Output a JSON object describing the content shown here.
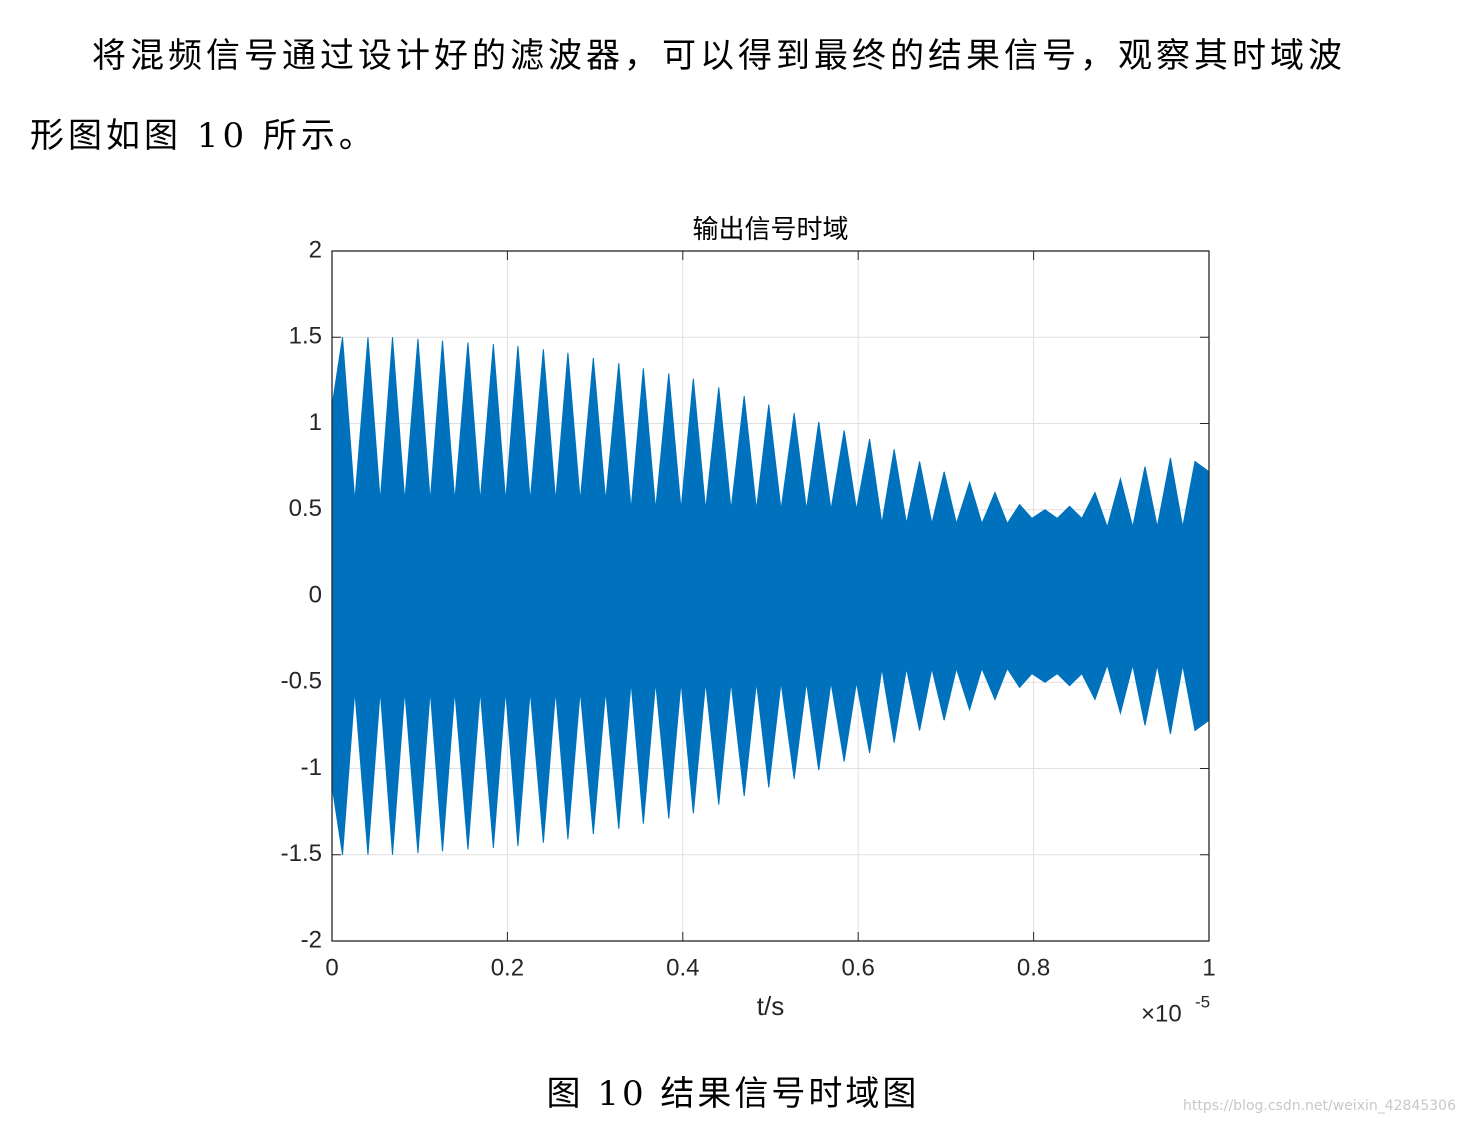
{
  "paragraph_lines": [
    "将混频信号通过设计好的滤波器，可以得到最终的结果信号，观察其时域波",
    "形图如图 10 所示。"
  ],
  "chart_data": {
    "type": "area",
    "title": "输出信号时域",
    "x_label": "t/s",
    "x_multiplier": "×10",
    "x_multiplier_exponent": "-5",
    "x": [
      0,
      0.012,
      0.026,
      0.041,
      0.055,
      0.069,
      0.083,
      0.098,
      0.112,
      0.126,
      0.14,
      0.155,
      0.169,
      0.184,
      0.198,
      0.212,
      0.226,
      0.241,
      0.255,
      0.269,
      0.283,
      0.298,
      0.312,
      0.327,
      0.341,
      0.355,
      0.369,
      0.384,
      0.398,
      0.412,
      0.426,
      0.441,
      0.455,
      0.47,
      0.484,
      0.498,
      0.512,
      0.527,
      0.541,
      0.555,
      0.569,
      0.584,
      0.598,
      0.613,
      0.627,
      0.641,
      0.655,
      0.67,
      0.684,
      0.698,
      0.712,
      0.727,
      0.741,
      0.756,
      0.77,
      0.784,
      0.798,
      0.813,
      0.827,
      0.841,
      0.855,
      0.87,
      0.884,
      0.899,
      0.913,
      0.927,
      0.941,
      0.956,
      0.97,
      0.984,
      1
    ],
    "series": [
      {
        "color": "#0072bd",
        "values": [
          1.1,
          1.5,
          0.55,
          1.5,
          0.55,
          1.5,
          0.55,
          1.49,
          0.55,
          1.48,
          0.55,
          1.47,
          0.55,
          1.46,
          0.55,
          1.45,
          0.55,
          1.43,
          0.55,
          1.41,
          0.55,
          1.38,
          0.55,
          1.35,
          0.5,
          1.32,
          0.5,
          1.29,
          0.5,
          1.26,
          0.5,
          1.21,
          0.5,
          1.16,
          0.5,
          1.11,
          0.5,
          1.06,
          0.5,
          1.01,
          0.5,
          0.96,
          0.5,
          0.91,
          0.42,
          0.85,
          0.42,
          0.78,
          0.42,
          0.72,
          0.42,
          0.66,
          0.42,
          0.6,
          0.42,
          0.53,
          0.45,
          0.5,
          0.45,
          0.52,
          0.45,
          0.6,
          0.4,
          0.68,
          0.4,
          0.75,
          0.4,
          0.8,
          0.4,
          0.78,
          0.72
        ]
      },
      {
        "color": "#0072bd",
        "values": [
          -1.1,
          -1.5,
          -0.55,
          -1.5,
          -0.55,
          -1.5,
          -0.55,
          -1.49,
          -0.55,
          -1.48,
          -0.55,
          -1.47,
          -0.55,
          -1.46,
          -0.55,
          -1.45,
          -0.55,
          -1.43,
          -0.55,
          -1.41,
          -0.55,
          -1.38,
          -0.55,
          -1.35,
          -0.5,
          -1.32,
          -0.5,
          -1.29,
          -0.5,
          -1.26,
          -0.5,
          -1.21,
          -0.5,
          -1.16,
          -0.5,
          -1.11,
          -0.5,
          -1.06,
          -0.5,
          -1.01,
          -0.5,
          -0.96,
          -0.5,
          -0.91,
          -0.42,
          -0.85,
          -0.42,
          -0.78,
          -0.42,
          -0.72,
          -0.42,
          -0.66,
          -0.42,
          -0.6,
          -0.42,
          -0.53,
          -0.45,
          -0.5,
          -0.45,
          -0.52,
          -0.45,
          -0.6,
          -0.4,
          -0.68,
          -0.4,
          -0.75,
          -0.4,
          -0.8,
          -0.4,
          -0.78,
          -0.72
        ]
      }
    ],
    "xlim": [
      0,
      1
    ],
    "xticks": [
      0,
      0.2,
      0.4,
      0.6,
      0.8,
      1
    ],
    "ylim": [
      -2,
      2
    ],
    "yticks": [
      -2,
      -1.5,
      -1,
      -0.5,
      0,
      0.5,
      1,
      1.5,
      2
    ],
    "grid": true
  },
  "caption": "图 10 结果信号时域图",
  "watermark": "https://blog.csdn.net/weixin_42845306"
}
